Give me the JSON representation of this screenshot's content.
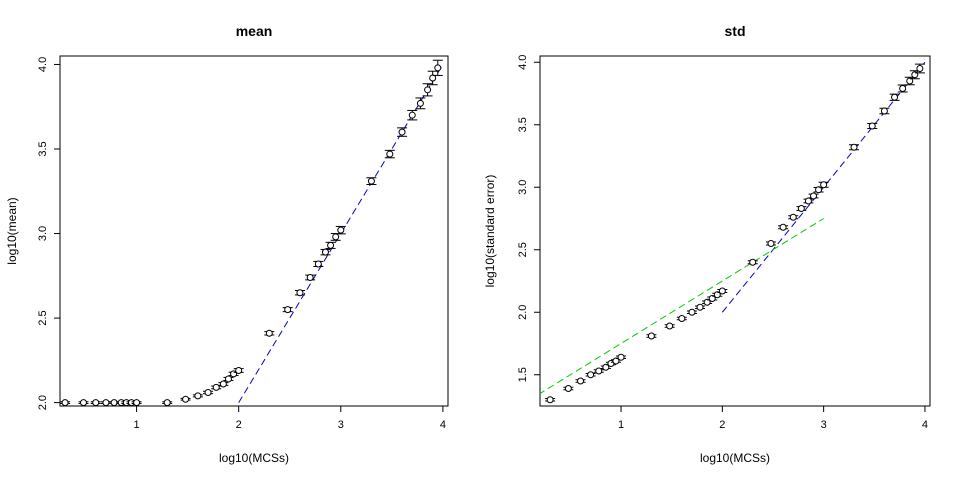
{
  "chart_data": [
    {
      "type": "scatter",
      "title": "mean",
      "xlabel": "log10(MCSs)",
      "ylabel": "log10(mean)",
      "xlim": [
        0.25,
        4.05
      ],
      "ylim": [
        1.98,
        4.05
      ],
      "xticks": [
        "1",
        "2",
        "3",
        "4"
      ],
      "yticks": [
        "2.0",
        "2.5",
        "3.0",
        "3.5",
        "4.0"
      ],
      "grid": false,
      "series": [
        {
          "points": [
            [
              0.3,
              2.0
            ],
            [
              0.48,
              2.0
            ],
            [
              0.6,
              2.0
            ],
            [
              0.7,
              2.0
            ],
            [
              0.78,
              2.0
            ],
            [
              0.85,
              2.0
            ],
            [
              0.9,
              2.0
            ],
            [
              0.95,
              2.0
            ],
            [
              1.0,
              2.0
            ],
            [
              1.3,
              2.0
            ],
            [
              1.48,
              2.02
            ],
            [
              1.6,
              2.04
            ],
            [
              1.7,
              2.06
            ],
            [
              1.78,
              2.09
            ],
            [
              1.85,
              2.11
            ],
            [
              1.9,
              2.14
            ],
            [
              1.95,
              2.17
            ],
            [
              2.0,
              2.19
            ],
            [
              2.3,
              2.41
            ],
            [
              2.48,
              2.55
            ],
            [
              2.6,
              2.65
            ],
            [
              2.7,
              2.74
            ],
            [
              2.78,
              2.82
            ],
            [
              2.85,
              2.89
            ],
            [
              2.9,
              2.93
            ],
            [
              2.95,
              2.98
            ],
            [
              3.0,
              3.02
            ],
            [
              3.3,
              3.31
            ],
            [
              3.48,
              3.47
            ],
            [
              3.6,
              3.6
            ],
            [
              3.7,
              3.7
            ],
            [
              3.78,
              3.77
            ],
            [
              3.85,
              3.85
            ],
            [
              3.9,
              3.92
            ],
            [
              3.95,
              3.98
            ]
          ],
          "errors": [
            0.005,
            0.005,
            0.005,
            0.005,
            0.005,
            0.005,
            0.005,
            0.005,
            0.005,
            0.005,
            0.005,
            0.006,
            0.007,
            0.008,
            0.008,
            0.009,
            0.01,
            0.011,
            0.01,
            0.012,
            0.013,
            0.014,
            0.015,
            0.016,
            0.018,
            0.02,
            0.022,
            0.02,
            0.022,
            0.025,
            0.028,
            0.032,
            0.036,
            0.04,
            0.045
          ]
        }
      ],
      "fit_lines": [
        {
          "color": "#0000cc",
          "x": [
            2.0,
            4.0
          ],
          "y": [
            2.0,
            4.0
          ]
        }
      ]
    },
    {
      "type": "scatter",
      "title": "std",
      "xlabel": "log10(MCSs)",
      "ylabel": "log10(standard error)",
      "xlim": [
        0.2,
        4.05
      ],
      "ylim": [
        1.25,
        4.05
      ],
      "xticks": [
        "1",
        "2",
        "3",
        "4"
      ],
      "yticks": [
        "1.5",
        "2.0",
        "2.5",
        "3.0",
        "3.5",
        "4.0"
      ],
      "grid": false,
      "series": [
        {
          "points": [
            [
              0.3,
              1.3
            ],
            [
              0.48,
              1.39
            ],
            [
              0.6,
              1.45
            ],
            [
              0.7,
              1.5
            ],
            [
              0.78,
              1.53
            ],
            [
              0.85,
              1.56
            ],
            [
              0.9,
              1.59
            ],
            [
              0.95,
              1.61
            ],
            [
              1.0,
              1.64
            ],
            [
              1.3,
              1.81
            ],
            [
              1.48,
              1.89
            ],
            [
              1.6,
              1.95
            ],
            [
              1.7,
              2.0
            ],
            [
              1.78,
              2.04
            ],
            [
              1.85,
              2.08
            ],
            [
              1.9,
              2.11
            ],
            [
              1.95,
              2.14
            ],
            [
              2.0,
              2.17
            ],
            [
              2.3,
              2.4
            ],
            [
              2.48,
              2.55
            ],
            [
              2.6,
              2.68
            ],
            [
              2.7,
              2.76
            ],
            [
              2.78,
              2.83
            ],
            [
              2.85,
              2.89
            ],
            [
              2.9,
              2.93
            ],
            [
              2.95,
              2.98
            ],
            [
              3.0,
              3.02
            ],
            [
              3.3,
              3.32
            ],
            [
              3.48,
              3.49
            ],
            [
              3.6,
              3.61
            ],
            [
              3.7,
              3.72
            ],
            [
              3.78,
              3.79
            ],
            [
              3.85,
              3.85
            ],
            [
              3.9,
              3.9
            ],
            [
              3.95,
              3.95
            ]
          ],
          "errors": [
            0.01,
            0.01,
            0.01,
            0.01,
            0.01,
            0.01,
            0.01,
            0.01,
            0.01,
            0.01,
            0.01,
            0.01,
            0.01,
            0.01,
            0.01,
            0.012,
            0.012,
            0.012,
            0.012,
            0.012,
            0.012,
            0.012,
            0.015,
            0.015,
            0.015,
            0.018,
            0.02,
            0.02,
            0.02,
            0.022,
            0.025,
            0.028,
            0.03,
            0.032,
            0.035
          ]
        }
      ],
      "fit_lines": [
        {
          "color": "#0000cc",
          "x": [
            2.0,
            4.0
          ],
          "y": [
            2.0,
            4.0
          ]
        },
        {
          "color": "#00cc00",
          "x": [
            0.0,
            3.0
          ],
          "y": [
            1.25,
            2.75
          ]
        }
      ]
    }
  ]
}
